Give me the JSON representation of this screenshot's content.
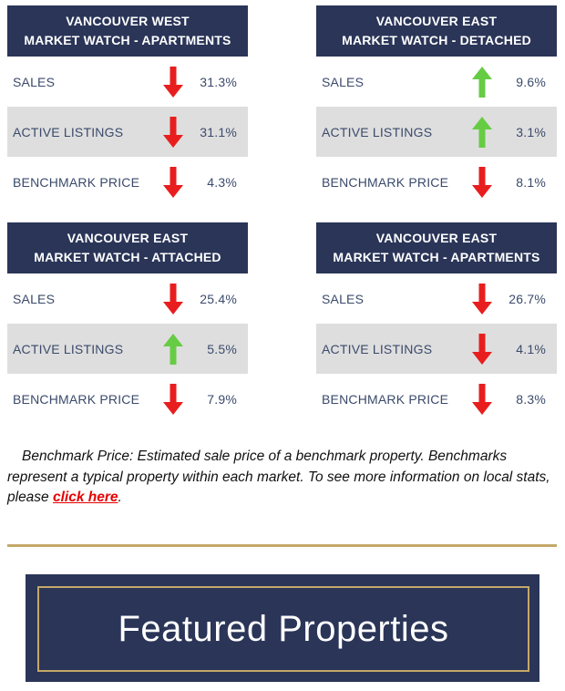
{
  "colors": {
    "header_bg": "#2a3558",
    "row_shade": "#dedede",
    "arrow_down": "#e81e1e",
    "arrow_up": "#66cc44",
    "gold": "#c4a868",
    "link": "#e60000"
  },
  "cards": [
    {
      "title_line1": "VANCOUVER WEST",
      "title_line2": "MARKET WATCH - APARTMENTS",
      "rows": [
        {
          "label": "SALES",
          "direction": "down",
          "icon": "arrow-down-icon",
          "value": "31.3%"
        },
        {
          "label": "ACTIVE LISTINGS",
          "direction": "down",
          "icon": "arrow-down-icon",
          "value": "31.1%"
        },
        {
          "label": "BENCHMARK PRICE",
          "direction": "down",
          "icon": "arrow-down-icon",
          "value": "4.3%"
        }
      ]
    },
    {
      "title_line1": "VANCOUVER EAST",
      "title_line2": "MARKET WATCH - DETACHED",
      "rows": [
        {
          "label": "SALES",
          "direction": "up",
          "icon": "arrow-up-icon",
          "value": "9.6%"
        },
        {
          "label": "ACTIVE LISTINGS",
          "direction": "up",
          "icon": "arrow-up-icon",
          "value": "3.1%"
        },
        {
          "label": "BENCHMARK PRICE",
          "direction": "down",
          "icon": "arrow-down-icon",
          "value": "8.1%"
        }
      ]
    },
    {
      "title_line1": "VANCOUVER EAST",
      "title_line2": "MARKET WATCH - ATTACHED",
      "rows": [
        {
          "label": "SALES",
          "direction": "down",
          "icon": "arrow-down-icon",
          "value": "25.4%"
        },
        {
          "label": "ACTIVE LISTINGS",
          "direction": "up",
          "icon": "arrow-up-icon",
          "value": "5.5%"
        },
        {
          "label": "BENCHMARK PRICE",
          "direction": "down",
          "icon": "arrow-down-icon",
          "value": "7.9%"
        }
      ]
    },
    {
      "title_line1": "VANCOUVER EAST",
      "title_line2": "MARKET WATCH - APARTMENTS",
      "rows": [
        {
          "label": "SALES",
          "direction": "down",
          "icon": "arrow-down-icon",
          "value": "26.7%"
        },
        {
          "label": "ACTIVE LISTINGS",
          "direction": "down",
          "icon": "arrow-down-icon",
          "value": "4.1%"
        },
        {
          "label": "BENCHMARK PRICE",
          "direction": "down",
          "icon": "arrow-down-icon",
          "value": "8.3%"
        }
      ]
    }
  ],
  "note": {
    "text": "Benchmark Price: Estimated sale price of a benchmark property. Benchmarks represent a typical property within each market. To see more information on local stats, please ",
    "link_text": "click here",
    "suffix": "."
  },
  "featured": {
    "title": "Featured Properties"
  }
}
